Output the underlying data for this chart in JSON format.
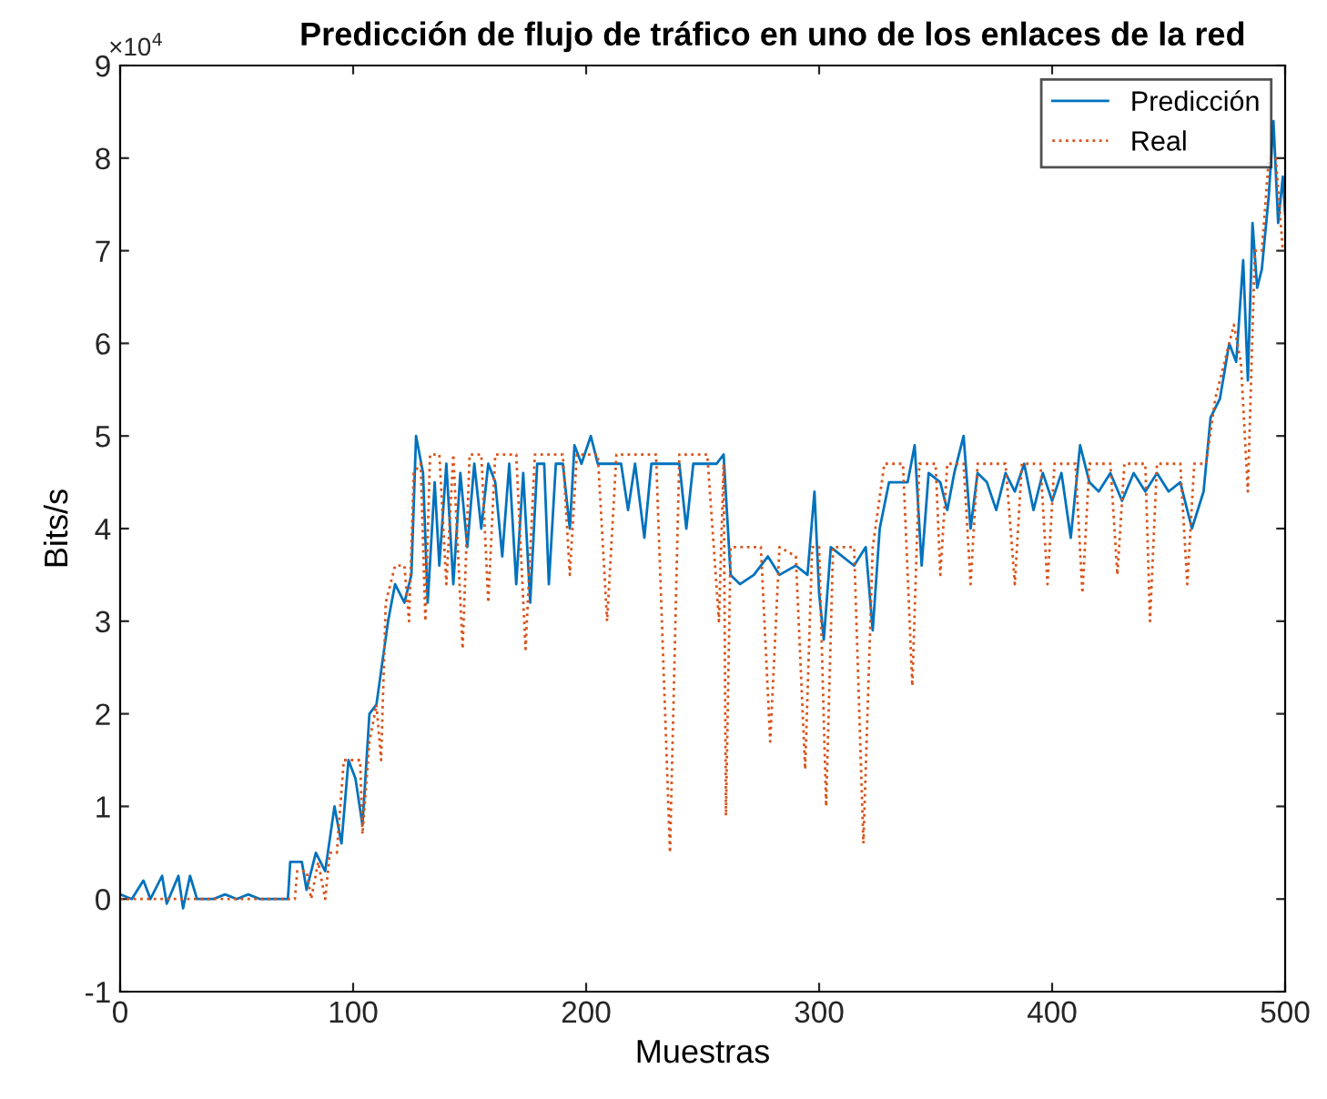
{
  "chart_data": {
    "type": "line",
    "title": "Predicción de flujo de tráfico en uno de los enlaces de la red",
    "xlabel": "Muestras",
    "ylabel": "Bits/s",
    "annotations": [
      "×10$^{4}$"
    ],
    "xlim": [
      0,
      500
    ],
    "xticks": [
      0,
      100,
      200,
      300,
      400,
      500
    ],
    "ylim": [
      -1,
      9
    ],
    "yticks": [
      -1,
      0,
      1,
      2,
      3,
      4,
      5,
      6,
      7,
      8,
      9
    ],
    "grid": false,
    "legend": "top right",
    "series": [
      {
        "name": "Predicción",
        "color": "#0072bd",
        "line_style": "solid",
        "x": [
          0,
          5,
          10,
          13,
          18,
          20,
          25,
          27,
          30,
          33,
          40,
          45,
          50,
          55,
          60,
          72,
          73,
          78,
          80,
          84,
          88,
          92,
          95,
          98,
          101,
          104,
          107,
          110,
          115,
          118,
          122,
          125,
          127,
          130,
          132,
          135,
          137,
          140,
          143,
          146,
          149,
          152,
          155,
          158,
          161,
          164,
          167,
          170,
          173,
          176,
          179,
          182,
          184,
          187,
          190,
          193,
          195,
          198,
          202,
          205,
          215,
          218,
          221,
          225,
          228,
          240,
          243,
          246,
          256,
          259,
          262,
          266,
          272,
          278,
          283,
          290,
          295,
          298,
          300,
          302,
          305,
          310,
          315,
          320,
          323,
          326,
          330,
          338,
          341,
          344,
          347,
          352,
          355,
          358,
          362,
          365,
          368,
          372,
          376,
          380,
          384,
          388,
          392,
          396,
          400,
          404,
          408,
          412,
          416,
          420,
          425,
          430,
          435,
          440,
          445,
          450,
          455,
          460,
          465,
          468,
          472,
          476,
          479,
          482,
          484,
          486,
          488,
          490,
          493,
          495,
          497,
          499,
          500
        ],
        "values": [
          0.05,
          0.0,
          0.2,
          0.0,
          0.25,
          -0.05,
          0.25,
          -0.1,
          0.25,
          0.0,
          0.0,
          0.05,
          0.0,
          0.05,
          0.0,
          0.0,
          0.4,
          0.4,
          0.1,
          0.5,
          0.3,
          1.0,
          0.6,
          1.5,
          1.3,
          0.8,
          2.0,
          2.1,
          3.0,
          3.4,
          3.2,
          3.5,
          5.0,
          4.6,
          3.2,
          4.5,
          3.6,
          4.7,
          3.4,
          4.6,
          3.8,
          4.7,
          4.0,
          4.7,
          4.5,
          3.7,
          4.7,
          3.4,
          4.6,
          3.2,
          4.7,
          4.7,
          3.4,
          4.7,
          4.7,
          4.0,
          4.9,
          4.7,
          5.0,
          4.7,
          4.7,
          4.2,
          4.7,
          3.9,
          4.7,
          4.7,
          4.0,
          4.7,
          4.7,
          4.8,
          3.5,
          3.4,
          3.5,
          3.7,
          3.5,
          3.6,
          3.5,
          4.4,
          3.3,
          2.8,
          3.8,
          3.7,
          3.6,
          3.8,
          2.9,
          4.0,
          4.5,
          4.5,
          4.9,
          3.6,
          4.6,
          4.5,
          4.2,
          4.6,
          5.0,
          4.0,
          4.6,
          4.5,
          4.2,
          4.6,
          4.4,
          4.7,
          4.2,
          4.6,
          4.3,
          4.6,
          3.9,
          4.9,
          4.5,
          4.4,
          4.6,
          4.3,
          4.6,
          4.4,
          4.6,
          4.4,
          4.5,
          4.0,
          4.4,
          5.2,
          5.4,
          6.0,
          5.8,
          6.9,
          5.6,
          7.3,
          6.6,
          6.8,
          7.6,
          8.4,
          7.3,
          7.8,
          7.4
        ]
      },
      {
        "name": "Real",
        "color": "#d95319",
        "line_style": "dotted",
        "x": [
          0,
          75,
          76,
          80,
          82,
          85,
          88,
          90,
          93,
          96,
          100,
          103,
          104,
          107,
          110,
          112,
          114,
          118,
          122,
          124,
          126,
          129,
          131,
          133,
          137,
          140,
          143,
          147,
          150,
          155,
          158,
          161,
          170,
          174,
          178,
          190,
          193,
          196,
          205,
          209,
          213,
          225,
          230,
          236,
          240,
          252,
          257,
          259,
          260,
          262,
          270,
          275,
          279,
          283,
          290,
          294,
          297,
          300,
          303,
          306,
          315,
          319,
          323,
          328,
          336,
          340,
          343,
          350,
          352,
          355,
          362,
          365,
          368,
          380,
          384,
          387,
          395,
          398,
          401,
          410,
          413,
          416,
          425,
          428,
          431,
          440,
          442,
          445,
          455,
          458,
          461,
          466,
          470,
          474,
          478,
          481,
          484,
          487,
          490,
          493,
          496,
          499,
          500
        ],
        "values": [
          0,
          0,
          0.3,
          0.3,
          0.0,
          0.4,
          0.0,
          0.5,
          0.5,
          1.5,
          1.5,
          1.5,
          0.7,
          1.7,
          2.1,
          1.5,
          3.2,
          3.6,
          3.6,
          3.0,
          4.6,
          4.7,
          3.0,
          4.8,
          4.8,
          3.4,
          4.8,
          2.7,
          4.8,
          4.8,
          3.2,
          4.8,
          4.8,
          2.7,
          4.8,
          4.8,
          3.5,
          4.8,
          4.8,
          3.0,
          4.8,
          4.8,
          4.8,
          0.5,
          4.8,
          4.8,
          3.0,
          4.7,
          0.9,
          3.8,
          3.8,
          3.8,
          1.7,
          3.8,
          3.7,
          1.4,
          3.8,
          3.8,
          1.0,
          3.8,
          3.8,
          0.6,
          3.8,
          4.7,
          4.7,
          2.3,
          4.7,
          4.7,
          3.5,
          4.7,
          4.7,
          3.4,
          4.7,
          4.7,
          3.4,
          4.7,
          4.7,
          3.4,
          4.7,
          4.7,
          3.3,
          4.7,
          4.7,
          3.5,
          4.7,
          4.7,
          3.0,
          4.7,
          4.7,
          3.4,
          4.7,
          4.7,
          5.4,
          5.8,
          6.2,
          5.8,
          4.4,
          7.0,
          7.0,
          8.0,
          8.0,
          7.0,
          7.0
        ]
      }
    ]
  }
}
